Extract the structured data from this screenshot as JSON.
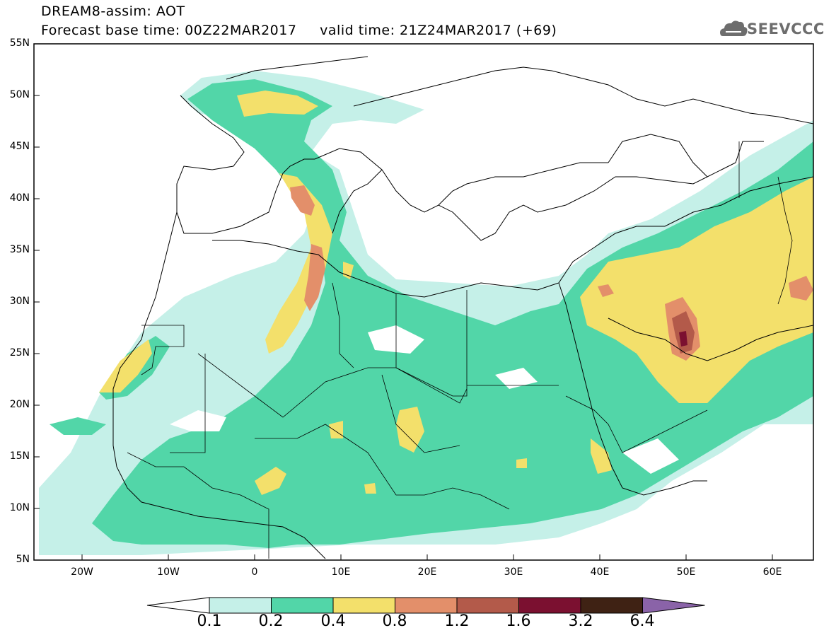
{
  "header": {
    "line1": "DREAM8-assim: AOT",
    "line2": "Forecast base time: 00Z22MAR2017     valid time: 21Z24MAR2017 (+69)"
  },
  "logo": {
    "text": "SEEVCCC",
    "icon": "cloud-icon"
  },
  "map": {
    "lat_labels": [
      "55N",
      "50N",
      "45N",
      "40N",
      "35N",
      "30N",
      "25N",
      "20N",
      "15N",
      "10N",
      "5N"
    ],
    "lon_labels": [
      "20W",
      "10W",
      "0",
      "10E",
      "20E",
      "30E",
      "40E",
      "50E",
      "60E"
    ],
    "lon_range": [
      -25,
      65
    ],
    "lat_range": [
      5,
      55
    ]
  },
  "colorbar": {
    "ticks": [
      "0.1",
      "0.2",
      "0.4",
      "0.8",
      "1.2",
      "1.6",
      "3.2",
      "6.4"
    ],
    "colors": [
      "#ffffff",
      "#c5f0e8",
      "#52d6a8",
      "#f3e06b",
      "#e38f6a",
      "#b35a4a",
      "#7b1030",
      "#3f2214",
      "#8a63a8"
    ]
  }
}
